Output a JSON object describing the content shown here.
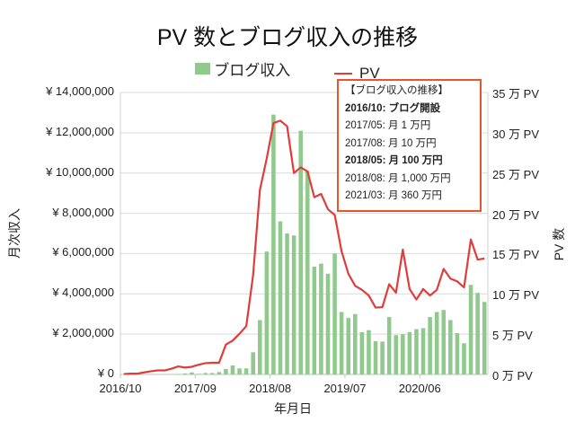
{
  "chart_data": {
    "type": "bar+line",
    "title": "PV 数とブログ収入の推移",
    "xlabel": "年月日",
    "ylabel_left": "月次収入",
    "ylabel_right": "PV 数",
    "ylim_left": [
      0,
      14000000
    ],
    "ylim_right": [
      0,
      35
    ],
    "yticks_left": [
      "¥ 0",
      "¥ 2,000,000",
      "¥ 4,000,000",
      "¥ 6,000,000",
      "¥ 8,000,000",
      "¥ 10,000,000",
      "¥ 12,000,000",
      "¥ 14,000,000"
    ],
    "yticks_right": [
      "0 万 PV",
      "5 万 PV",
      "10 万 PV",
      "15 万 PV",
      "20 万 PV",
      "25 万 PV",
      "30 万 PV",
      "35 万 PV"
    ],
    "xticks": [
      "2016/10",
      "2017/09",
      "2018/08",
      "2019/07",
      "2020/06"
    ],
    "grid": true,
    "legend_position": "top",
    "x": [
      "2016/10",
      "2016/11",
      "2016/12",
      "2017/01",
      "2017/02",
      "2017/03",
      "2017/04",
      "2017/05",
      "2017/06",
      "2017/07",
      "2017/08",
      "2017/09",
      "2017/10",
      "2017/11",
      "2017/12",
      "2018/01",
      "2018/02",
      "2018/03",
      "2018/04",
      "2018/05",
      "2018/06",
      "2018/07",
      "2018/08",
      "2018/09",
      "2018/10",
      "2018/11",
      "2018/12",
      "2019/01",
      "2019/02",
      "2019/03",
      "2019/04",
      "2019/05",
      "2019/06",
      "2019/07",
      "2019/08",
      "2019/09",
      "2019/10",
      "2019/11",
      "2019/12",
      "2020/01",
      "2020/02",
      "2020/03",
      "2020/04",
      "2020/05",
      "2020/06",
      "2020/07",
      "2020/08",
      "2020/09",
      "2020/10",
      "2020/11",
      "2020/12",
      "2021/01",
      "2021/02",
      "2021/03"
    ],
    "series": [
      {
        "name": "ブログ収入",
        "type": "bar",
        "axis": "left",
        "color": "#8fc98b",
        "values": [
          0,
          0,
          0,
          0,
          0,
          0,
          0,
          10000,
          20000,
          50000,
          100000,
          30000,
          70000,
          70000,
          120000,
          270000,
          450000,
          300000,
          300000,
          1100000,
          2700000,
          6100000,
          12900000,
          7600000,
          7000000,
          6900000,
          12100000,
          10100000,
          5350000,
          5500000,
          5000000,
          6000000,
          3100000,
          2800000,
          3000000,
          2100000,
          2200000,
          1650000,
          1630000,
          2850000,
          1950000,
          2000000,
          2100000,
          2250000,
          2300000,
          2850000,
          3100000,
          3200000,
          2700000,
          2050000,
          1550000,
          4450000,
          4050000,
          3600000
        ]
      },
      {
        "name": "PV",
        "type": "line",
        "axis": "right",
        "color": "#e03c3c",
        "values": [
          0.05,
          0.1,
          0.1,
          0.25,
          0.4,
          0.5,
          0.5,
          0.7,
          1.0,
          0.85,
          0.95,
          1.2,
          1.4,
          1.45,
          1.45,
          3.7,
          4.2,
          5.05,
          6.0,
          12.3,
          22.9,
          26.8,
          31.2,
          31.5,
          30.8,
          25.0,
          25.7,
          25.2,
          22.0,
          22.4,
          20.5,
          19.8,
          15.3,
          12.5,
          11.0,
          10.5,
          9.8,
          8.3,
          8.35,
          11.2,
          10.15,
          15.5,
          10.6,
          9.3,
          10.6,
          9.8,
          10.5,
          13.1,
          11.9,
          11.55,
          10.8,
          16.75,
          14.25,
          14.4
        ]
      }
    ],
    "annotation": {
      "heading": "【ブログ収入の推移】",
      "lines": [
        {
          "text": "2016/10: ブログ開設",
          "bold": true
        },
        {
          "text": "2017/05: 月 1 万円",
          "bold": false
        },
        {
          "text": "2017/08: 月 10 万円",
          "bold": false
        },
        {
          "text": "2018/05: 月 100 万円",
          "bold": true
        },
        {
          "text": "2018/08: 月 1,000 万円",
          "bold": false
        },
        {
          "text": "2021/03: 月 360 万円",
          "bold": false
        }
      ],
      "border_color": "#e8542c"
    }
  }
}
